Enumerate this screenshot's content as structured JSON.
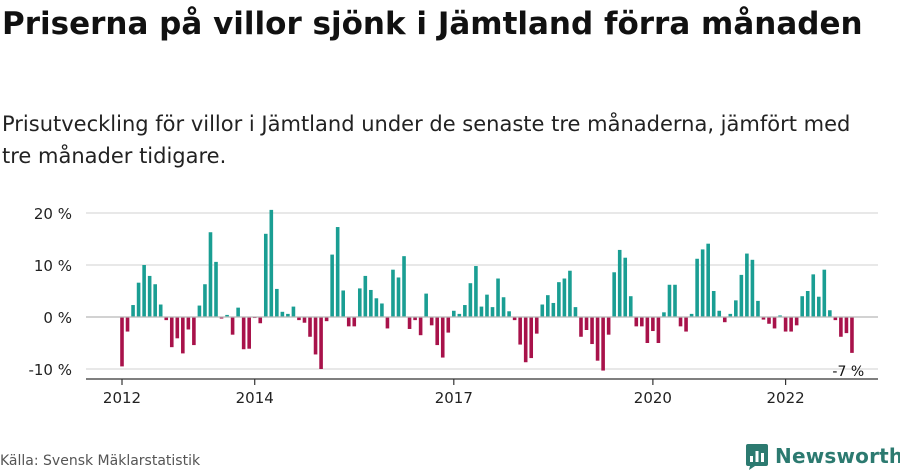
{
  "header": {
    "title": "Priserna på villor sjönk i Jämtland förra månaden",
    "subtitle": "Prisutveckling för villor i Jämtland under de senaste tre månaderna, jämfört med tre månader tidigare."
  },
  "footer": {
    "source": "Källa: Svensk Mäklarstatistik"
  },
  "brand": {
    "name": "Newsworthy",
    "icon": "newsworthy-logo-icon"
  },
  "colors": {
    "positive": "#1a9e93",
    "negative": "#a8124a",
    "grid": "#d9d9d9",
    "axis": "#333333"
  },
  "chart_data": {
    "type": "bar",
    "title": "",
    "xlabel": "",
    "ylabel": "",
    "ylim": [
      -10,
      20
    ],
    "y_ticks": [
      -10,
      0,
      10,
      20
    ],
    "y_tick_labels": [
      "-10 %",
      "0 %",
      "10 %",
      "20 %"
    ],
    "x_ticks": [
      {
        "date": "2012-01",
        "label": "2012"
      },
      {
        "date": "2014-01",
        "label": "2014"
      },
      {
        "date": "2017-01",
        "label": "2017"
      },
      {
        "date": "2020-01",
        "label": "2020"
      },
      {
        "date": "2022-01",
        "label": "2022"
      }
    ],
    "grid": true,
    "annotation": {
      "date": "2022-12",
      "label": "-7 %"
    },
    "series": [
      {
        "start": "2012-01",
        "values": [
          -9.5,
          -2.8,
          2.3,
          6.6,
          10.0,
          7.9,
          6.3,
          2.4,
          -0.6,
          -5.8,
          -4.1,
          -7.0,
          -2.4,
          -5.4,
          2.2,
          6.3,
          16.3,
          10.6,
          -0.3,
          0.4,
          -3.4,
          1.8,
          -6.2,
          -6.1,
          -0.2,
          -1.2,
          16.0,
          20.6,
          5.4,
          1.0,
          0.6,
          2.0,
          -0.6,
          -1.1,
          -3.8,
          -7.2,
          -10.0,
          -0.8,
          12.0,
          17.3,
          5.1,
          -1.8,
          -1.8,
          5.5,
          7.9,
          5.2,
          3.6,
          2.6,
          -2.2,
          9.1,
          7.6,
          11.7,
          -2.3,
          -0.6,
          -3.5,
          4.5,
          -1.6,
          -5.4,
          -7.8,
          -3.0,
          1.2,
          0.6,
          2.3,
          6.5,
          9.8,
          2.0,
          4.3,
          1.9,
          7.4,
          3.8,
          1.1,
          -0.6,
          -5.3,
          -8.7,
          -7.9,
          -3.2,
          2.4,
          4.2,
          2.7,
          6.7,
          7.4,
          8.9,
          1.9,
          -3.8,
          -2.5,
          -5.2,
          -8.4,
          -10.3,
          -3.4,
          8.6,
          12.9,
          11.4,
          4.0,
          -1.8,
          -1.8,
          -5.0,
          -2.7,
          -5.0,
          0.9,
          6.2,
          6.2,
          -1.8,
          -2.8,
          0.6,
          11.2,
          13.0,
          14.1,
          5.0,
          1.2,
          -1.0,
          0.6,
          3.2,
          8.1,
          12.2,
          11.0,
          3.1,
          -0.5,
          -1.3,
          -2.2,
          0.3,
          -2.8,
          -2.8,
          -1.6,
          4.0,
          5.0,
          8.2,
          3.9,
          9.1,
          1.3,
          -0.6,
          -3.8,
          -3.1,
          -6.9
        ]
      }
    ]
  }
}
